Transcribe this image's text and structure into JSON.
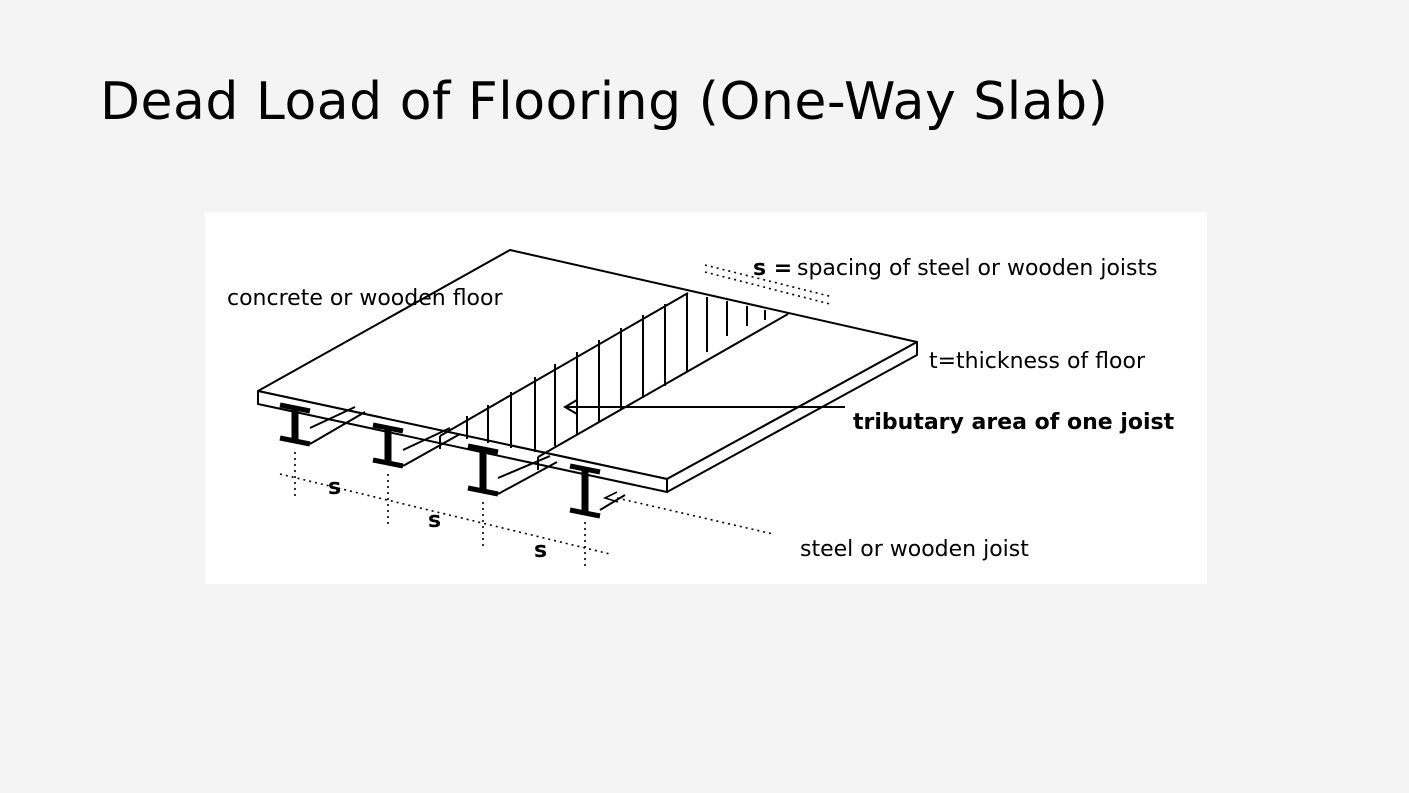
{
  "slide": {
    "title": "Dead Load of Flooring (One-Way Slab)"
  },
  "diagram": {
    "labels": {
      "floor": "concrete or wooden floor",
      "spacing_symbol": "s =",
      "spacing_text": "spacing of steel or wooden joists",
      "thickness": "t=thickness of floor",
      "tributary": "tributary area of one joist",
      "joist": "steel or wooden joist",
      "s1": "s",
      "s2": "s",
      "s3": "s"
    }
  }
}
